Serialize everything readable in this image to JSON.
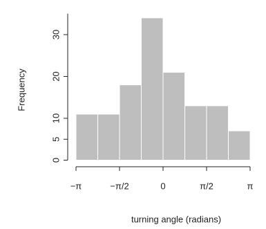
{
  "chart_data": {
    "type": "histogram",
    "x_label": "turning angle (radians)",
    "y_label": "Frequency",
    "bins": [
      -3.141593,
      -2.356194,
      -1.570796,
      -0.785398,
      0,
      0.785398,
      1.570796,
      2.356194,
      3.141593
    ],
    "values": [
      11,
      11,
      18,
      34,
      21,
      13,
      13,
      7
    ],
    "color": "#bebebe",
    "xlim": [
      -3.141593,
      3.141593
    ],
    "xticks": [
      {
        "value": -3.141593,
        "label": "−π"
      },
      {
        "value": -1.570796,
        "label": "−π/2"
      },
      0,
      {
        "value": 1.570796,
        "label": "π/2"
      },
      {
        "value": 3.141593,
        "label": "π"
      }
    ],
    "ylim": [
      0,
      35
    ],
    "yticks": [
      0,
      5,
      10,
      20,
      30
    ]
  }
}
